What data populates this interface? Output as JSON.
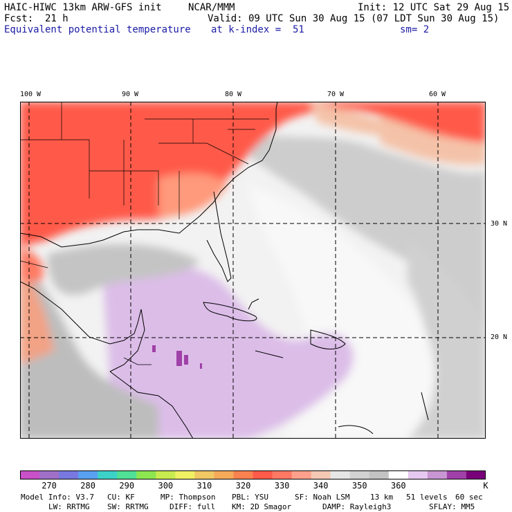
{
  "header": {
    "model_line": "HAIC-HIWC 13km ARW-GFS init",
    "center": "NCAR/MMM",
    "init": "Init: 12 UTC Sat 29 Aug 15",
    "fcst": "Fcst:  21 h",
    "valid": "Valid: 09 UTC Sun 30 Aug 15 (07 LDT Sun 30 Aug 15)",
    "field": "Equivalent potential temperature",
    "level": "at k-index =  51",
    "smooth": "sm= 2"
  },
  "map": {
    "lon_labels": [
      "100 W",
      "90 W",
      "80 W",
      "70 W",
      "60 W"
    ],
    "lat_labels": [
      "30 N",
      "20 N"
    ],
    "colors": {
      "warm_red": "#ff5a4a",
      "salmon": "#ff9a7c",
      "peach": "#f4c2a8",
      "gray": "#c8c8c8",
      "light_gray": "#e6e6e6",
      "white": "#f6f6f6",
      "lavender": "#d9b8e6",
      "purple": "#a040a8",
      "coast": "#000000"
    }
  },
  "colorbar": {
    "unit": "K",
    "tick_labels": [
      "270",
      "280",
      "290",
      "300",
      "310",
      "320",
      "330",
      "340",
      "350",
      "360"
    ],
    "colors": [
      "#c850c8",
      "#a070c8",
      "#7878e0",
      "#5aa0f0",
      "#3cd2c8",
      "#50e096",
      "#8ce650",
      "#c8eb50",
      "#f0f064",
      "#f0c864",
      "#f5aa5a",
      "#fa8250",
      "#ff5a4a",
      "#ff7864",
      "#ffa08c",
      "#f5c8b4",
      "#e6e6e6",
      "#d2d2d2",
      "#c3c3c3",
      "#ffffff",
      "#e6c8f0",
      "#c896d2",
      "#a040a8",
      "#780078"
    ]
  },
  "footer": {
    "line1": [
      "Model Info: V3.7",
      "CU: KF",
      "MP: Thompson",
      "PBL: YSU",
      "SF: Noah LSM",
      "13 km",
      "51 levels",
      "60 sec"
    ],
    "line2": [
      "LW: RRTMG",
      "SW: RRTMG",
      "DIFF: full",
      "KM: 2D Smagor",
      "DAMP: Rayleigh3",
      "SFLAY: MM5"
    ]
  }
}
